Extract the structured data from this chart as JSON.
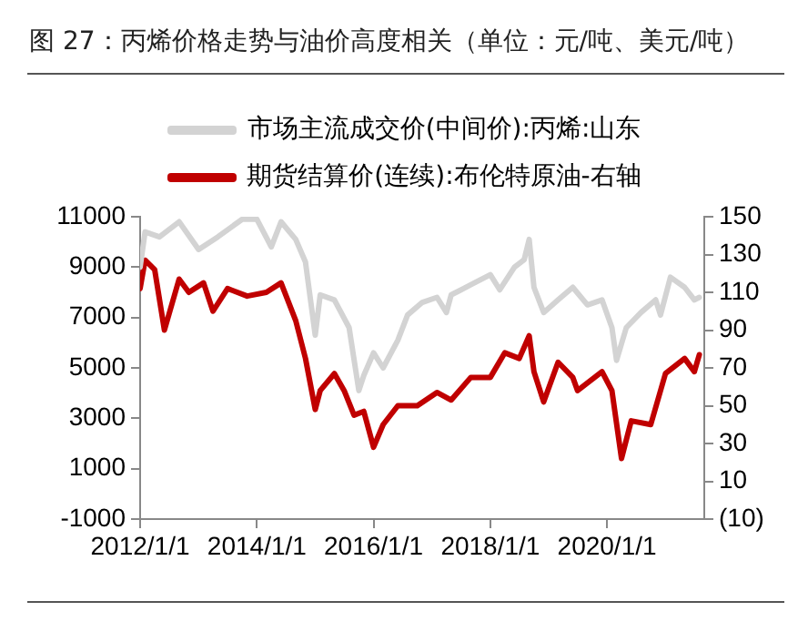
{
  "chart_data": {
    "type": "line",
    "title": "图 27：丙烯价格走势与油价高度相关（单位：元/吨、美元/吨）",
    "series": [
      {
        "name": "市场主流成交价(中间价):丙烯:山东",
        "color": "#d3d3d3",
        "x": [
          "2012-01",
          "2012-02",
          "2012-05",
          "2012-09",
          "2013-01",
          "2013-05",
          "2013-10",
          "2014-01",
          "2014-04",
          "2014-06",
          "2014-09",
          "2014-11",
          "2015-01",
          "2015-02",
          "2015-05",
          "2015-08",
          "2015-10",
          "2015-11",
          "2016-01",
          "2016-03",
          "2016-06",
          "2016-08",
          "2016-11",
          "2017-02",
          "2017-04",
          "2017-05",
          "2017-09",
          "2018-01",
          "2018-03",
          "2018-06",
          "2018-08",
          "2018-09",
          "2018-10",
          "2018-12",
          "2019-03",
          "2019-06",
          "2019-09",
          "2019-12",
          "2020-02",
          "2020-03",
          "2020-05",
          "2020-08",
          "2020-11",
          "2020-12",
          "2021-02",
          "2021-05",
          "2021-07",
          "2021-08"
        ],
        "values": [
          9000,
          10400,
          10200,
          10800,
          9700,
          10200,
          10900,
          10900,
          9800,
          10800,
          10100,
          9200,
          6300,
          7900,
          7700,
          6600,
          4100,
          4700,
          5600,
          5000,
          6100,
          7100,
          7600,
          7800,
          7200,
          7900,
          8300,
          8700,
          8100,
          9000,
          9300,
          10100,
          8200,
          7200,
          7700,
          8200,
          7500,
          7700,
          6600,
          5300,
          6600,
          7200,
          7700,
          7100,
          8600,
          8200,
          7700,
          7800
        ]
      },
      {
        "name": "期货结算价(连续):布伦特原油-右轴",
        "color": "#c00000",
        "axis": "y2",
        "x": [
          "2012-01",
          "2012-02",
          "2012-04",
          "2012-06",
          "2012-09",
          "2012-11",
          "2013-02",
          "2013-04",
          "2013-07",
          "2013-11",
          "2014-03",
          "2014-06",
          "2014-09",
          "2014-11",
          "2015-01",
          "2015-02",
          "2015-05",
          "2015-07",
          "2015-09",
          "2015-11",
          "2016-01",
          "2016-03",
          "2016-06",
          "2016-10",
          "2017-02",
          "2017-05",
          "2017-09",
          "2018-01",
          "2018-04",
          "2018-07",
          "2018-09",
          "2018-10",
          "2018-12",
          "2019-03",
          "2019-06",
          "2019-07",
          "2019-12",
          "2020-02",
          "2020-04",
          "2020-06",
          "2020-10",
          "2021-01",
          "2021-05",
          "2021-07",
          "2021-08"
        ],
        "values": [
          112,
          127,
          122,
          90,
          117,
          110,
          115,
          100,
          112,
          108,
          110,
          115,
          95,
          75,
          48,
          58,
          67,
          58,
          45,
          47,
          28,
          40,
          50,
          50,
          57,
          53,
          65,
          65,
          78,
          75,
          87,
          68,
          52,
          73,
          65,
          58,
          68,
          58,
          22,
          42,
          40,
          67,
          75,
          68,
          77
        ]
      }
    ],
    "xlim": [
      "2012-01-01",
      "2021-09-01"
    ],
    "xticks": [
      {
        "value": "2012-01-01",
        "label": "2012/1/1"
      },
      {
        "value": "2014-01-01",
        "label": "2014/1/1"
      },
      {
        "value": "2016-01-01",
        "label": "2016/1/1"
      },
      {
        "value": "2018-01-01",
        "label": "2018/1/1"
      },
      {
        "value": "2020-01-01",
        "label": "2020/1/1"
      }
    ],
    "ylim": [
      -1000,
      11000
    ],
    "yticks": [
      -1000,
      1000,
      3000,
      5000,
      7000,
      9000,
      11000
    ],
    "y2lim": [
      -10,
      150
    ],
    "y2ticks": [
      {
        "value": -10,
        "label": "(10)"
      },
      10,
      30,
      50,
      70,
      90,
      110,
      130,
      150
    ],
    "grid": false,
    "legend": "top",
    "marker": "none",
    "line_style": "solid"
  }
}
